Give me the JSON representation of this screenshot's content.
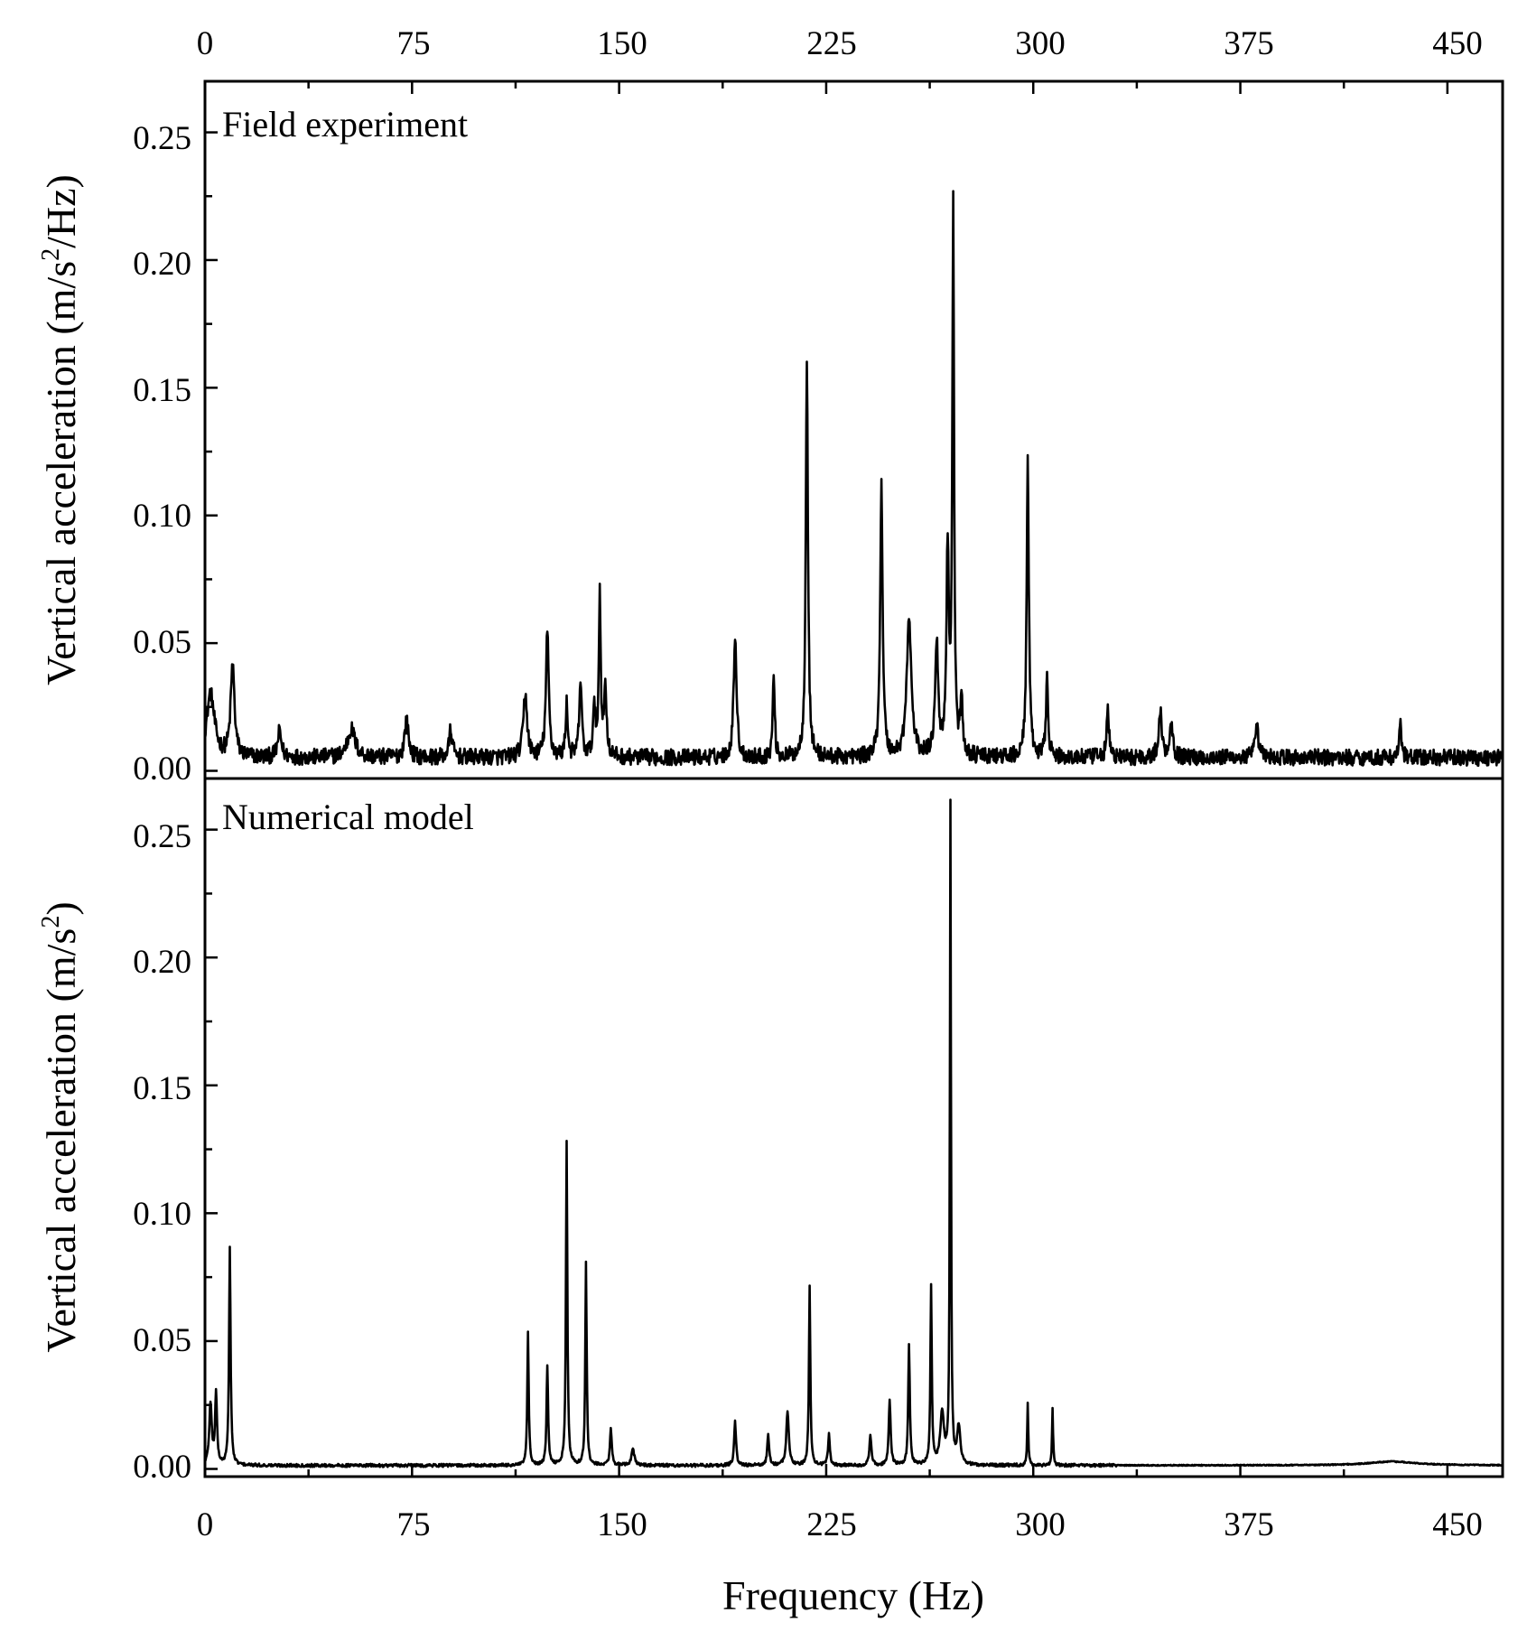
{
  "chart_data": [
    {
      "type": "line",
      "panel": "top",
      "annotation": "Field experiment",
      "ylabel_parts": [
        "Vertical acceleration (m/s",
        "2",
        "/Hz)"
      ],
      "xlabel": "",
      "xlim": [
        0,
        470
      ],
      "ylim": [
        -0.003,
        0.27
      ],
      "x_ticks": [
        0,
        75,
        150,
        225,
        300,
        375,
        450
      ],
      "x_tick_labels": [
        "0",
        "75",
        "150",
        "225",
        "300",
        "375",
        "450"
      ],
      "y_ticks": [
        0.0,
        0.05,
        0.1,
        0.15,
        0.2,
        0.25
      ],
      "y_tick_labels": [
        "0.00",
        "0.05",
        "0.10",
        "0.15",
        "0.20",
        "0.25"
      ],
      "grid": false,
      "line_color": "#000000",
      "baseline": 0.004,
      "peaks": [
        [
          2,
          0.025,
          2.5
        ],
        [
          10,
          0.036,
          1.2
        ],
        [
          27,
          0.01,
          1.2
        ],
        [
          53,
          0.011,
          2.5
        ],
        [
          73,
          0.015,
          1.2
        ],
        [
          89,
          0.011,
          1.0
        ],
        [
          116,
          0.025,
          1.2
        ],
        [
          124,
          0.049,
          0.9
        ],
        [
          131,
          0.021,
          0.7
        ],
        [
          136,
          0.03,
          0.8
        ],
        [
          141,
          0.018,
          0.8
        ],
        [
          143,
          0.064,
          0.6
        ],
        [
          145,
          0.027,
          0.8
        ],
        [
          192,
          0.049,
          0.9
        ],
        [
          206,
          0.033,
          0.6
        ],
        [
          218,
          0.157,
          0.7
        ],
        [
          245,
          0.106,
          0.8
        ],
        [
          255,
          0.053,
          1.5
        ],
        [
          265,
          0.045,
          1.0
        ],
        [
          269,
          0.08,
          0.8
        ],
        [
          271,
          0.212,
          0.55
        ],
        [
          274,
          0.02,
          0.8
        ],
        [
          298,
          0.117,
          0.7
        ],
        [
          305,
          0.032,
          0.7
        ],
        [
          327,
          0.018,
          0.8
        ],
        [
          346,
          0.018,
          1.0
        ],
        [
          350,
          0.014,
          1.0
        ],
        [
          381,
          0.011,
          1.2
        ],
        [
          433,
          0.012,
          0.8
        ]
      ]
    },
    {
      "type": "line",
      "panel": "bottom",
      "annotation": "Numerical model",
      "ylabel_parts": [
        "Vertical acceleration (m/s",
        "2",
        ")"
      ],
      "xlabel": "Frequency (Hz)",
      "xlim": [
        0,
        470
      ],
      "ylim": [
        -0.003,
        0.27
      ],
      "x_ticks": [
        0,
        75,
        150,
        225,
        300,
        375,
        450
      ],
      "x_tick_labels": [
        "0",
        "75",
        "150",
        "225",
        "300",
        "375",
        "450"
      ],
      "y_ticks": [
        0.0,
        0.05,
        0.1,
        0.15,
        0.2,
        0.25
      ],
      "y_tick_labels": [
        "0.00",
        "0.05",
        "0.10",
        "0.15",
        "0.20",
        "0.25"
      ],
      "grid": false,
      "line_color": "#000000",
      "baseline": 0.0015,
      "peaks": [
        [
          2,
          0.024,
          0.8
        ],
        [
          4,
          0.028,
          0.6
        ],
        [
          9,
          0.085,
          0.5
        ],
        [
          117,
          0.052,
          0.45
        ],
        [
          124,
          0.039,
          0.5
        ],
        [
          131,
          0.127,
          0.45
        ],
        [
          138,
          0.079,
          0.45
        ],
        [
          147,
          0.014,
          0.6
        ],
        [
          155,
          0.006,
          1.0
        ],
        [
          192,
          0.017,
          0.6
        ],
        [
          204,
          0.012,
          0.6
        ],
        [
          211,
          0.021,
          0.8
        ],
        [
          219,
          0.07,
          0.45
        ],
        [
          226,
          0.012,
          0.6
        ],
        [
          241,
          0.012,
          0.6
        ],
        [
          248,
          0.025,
          0.6
        ],
        [
          255,
          0.047,
          0.5
        ],
        [
          263,
          0.07,
          0.45
        ],
        [
          267,
          0.02,
          1.2
        ],
        [
          270,
          0.258,
          0.35
        ],
        [
          273,
          0.015,
          1.0
        ],
        [
          298,
          0.024,
          0.35
        ],
        [
          307,
          0.022,
          0.35
        ],
        [
          430,
          0.0015,
          15.0
        ]
      ]
    }
  ]
}
